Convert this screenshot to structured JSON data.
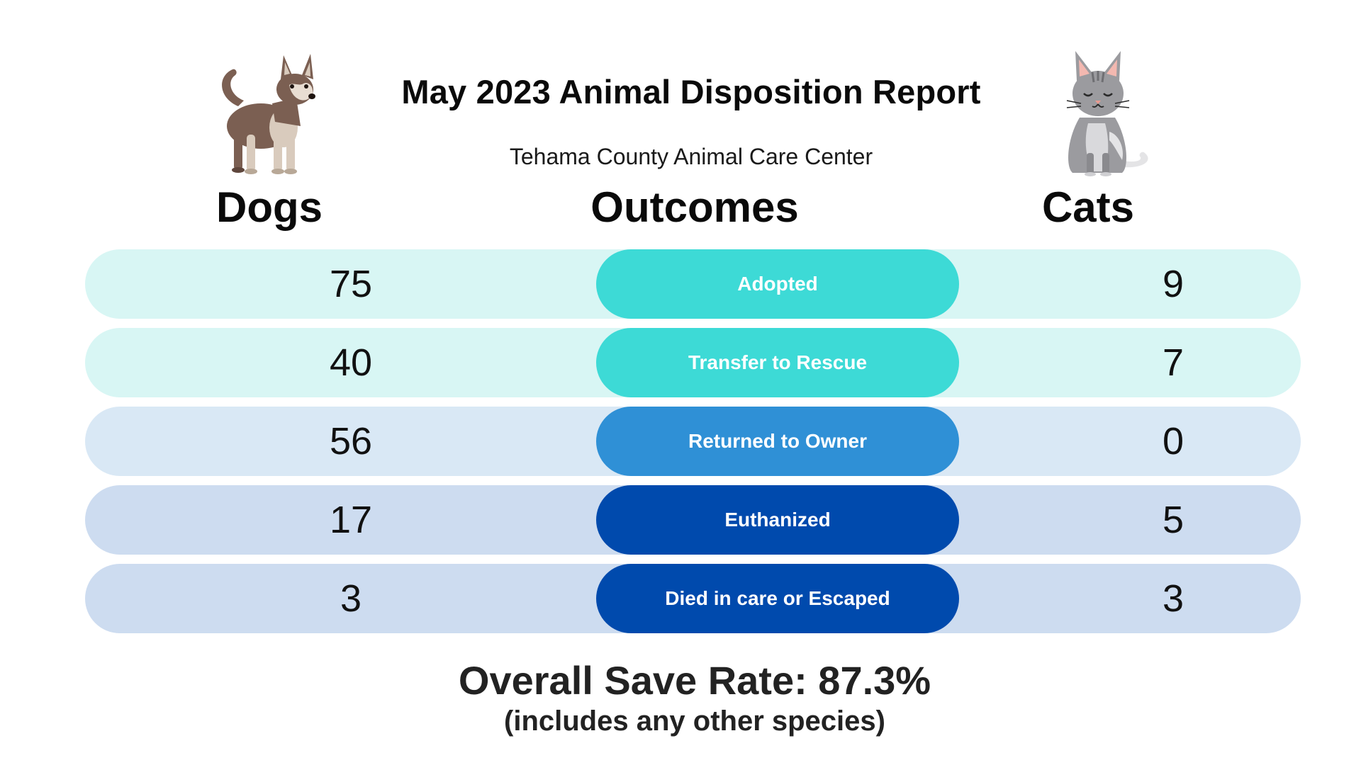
{
  "header": {
    "title": "May 2023 Animal Disposition Report",
    "subtitle": "Tehama County Animal Care Center"
  },
  "columns": {
    "dogs": "Dogs",
    "outcomes": "Outcomes",
    "cats": "Cats"
  },
  "rows": [
    {
      "label": "Adopted",
      "dogs": "75",
      "cats": "9",
      "row_color": "#d8f6f4",
      "pill_color": "#3ddad6"
    },
    {
      "label": "Transfer to Rescue",
      "dogs": "40",
      "cats": "7",
      "row_color": "#d8f6f4",
      "pill_color": "#3ddad6"
    },
    {
      "label": "Returned to Owner",
      "dogs": "56",
      "cats": "0",
      "row_color": "#d9e8f5",
      "pill_color": "#2f90d6"
    },
    {
      "label": "Euthanized",
      "dogs": "17",
      "cats": "5",
      "row_color": "#cddcf0",
      "pill_color": "#004aad"
    },
    {
      "label": "Died in care or Escaped",
      "dogs": "3",
      "cats": "3",
      "row_color": "#cddcf0",
      "pill_color": "#004aad"
    }
  ],
  "footer": {
    "save_rate": "Overall Save Rate:  87.3%",
    "note": "(includes any other species)"
  },
  "illustrations": {
    "left": "dog-illustration",
    "right": "cat-illustration"
  }
}
